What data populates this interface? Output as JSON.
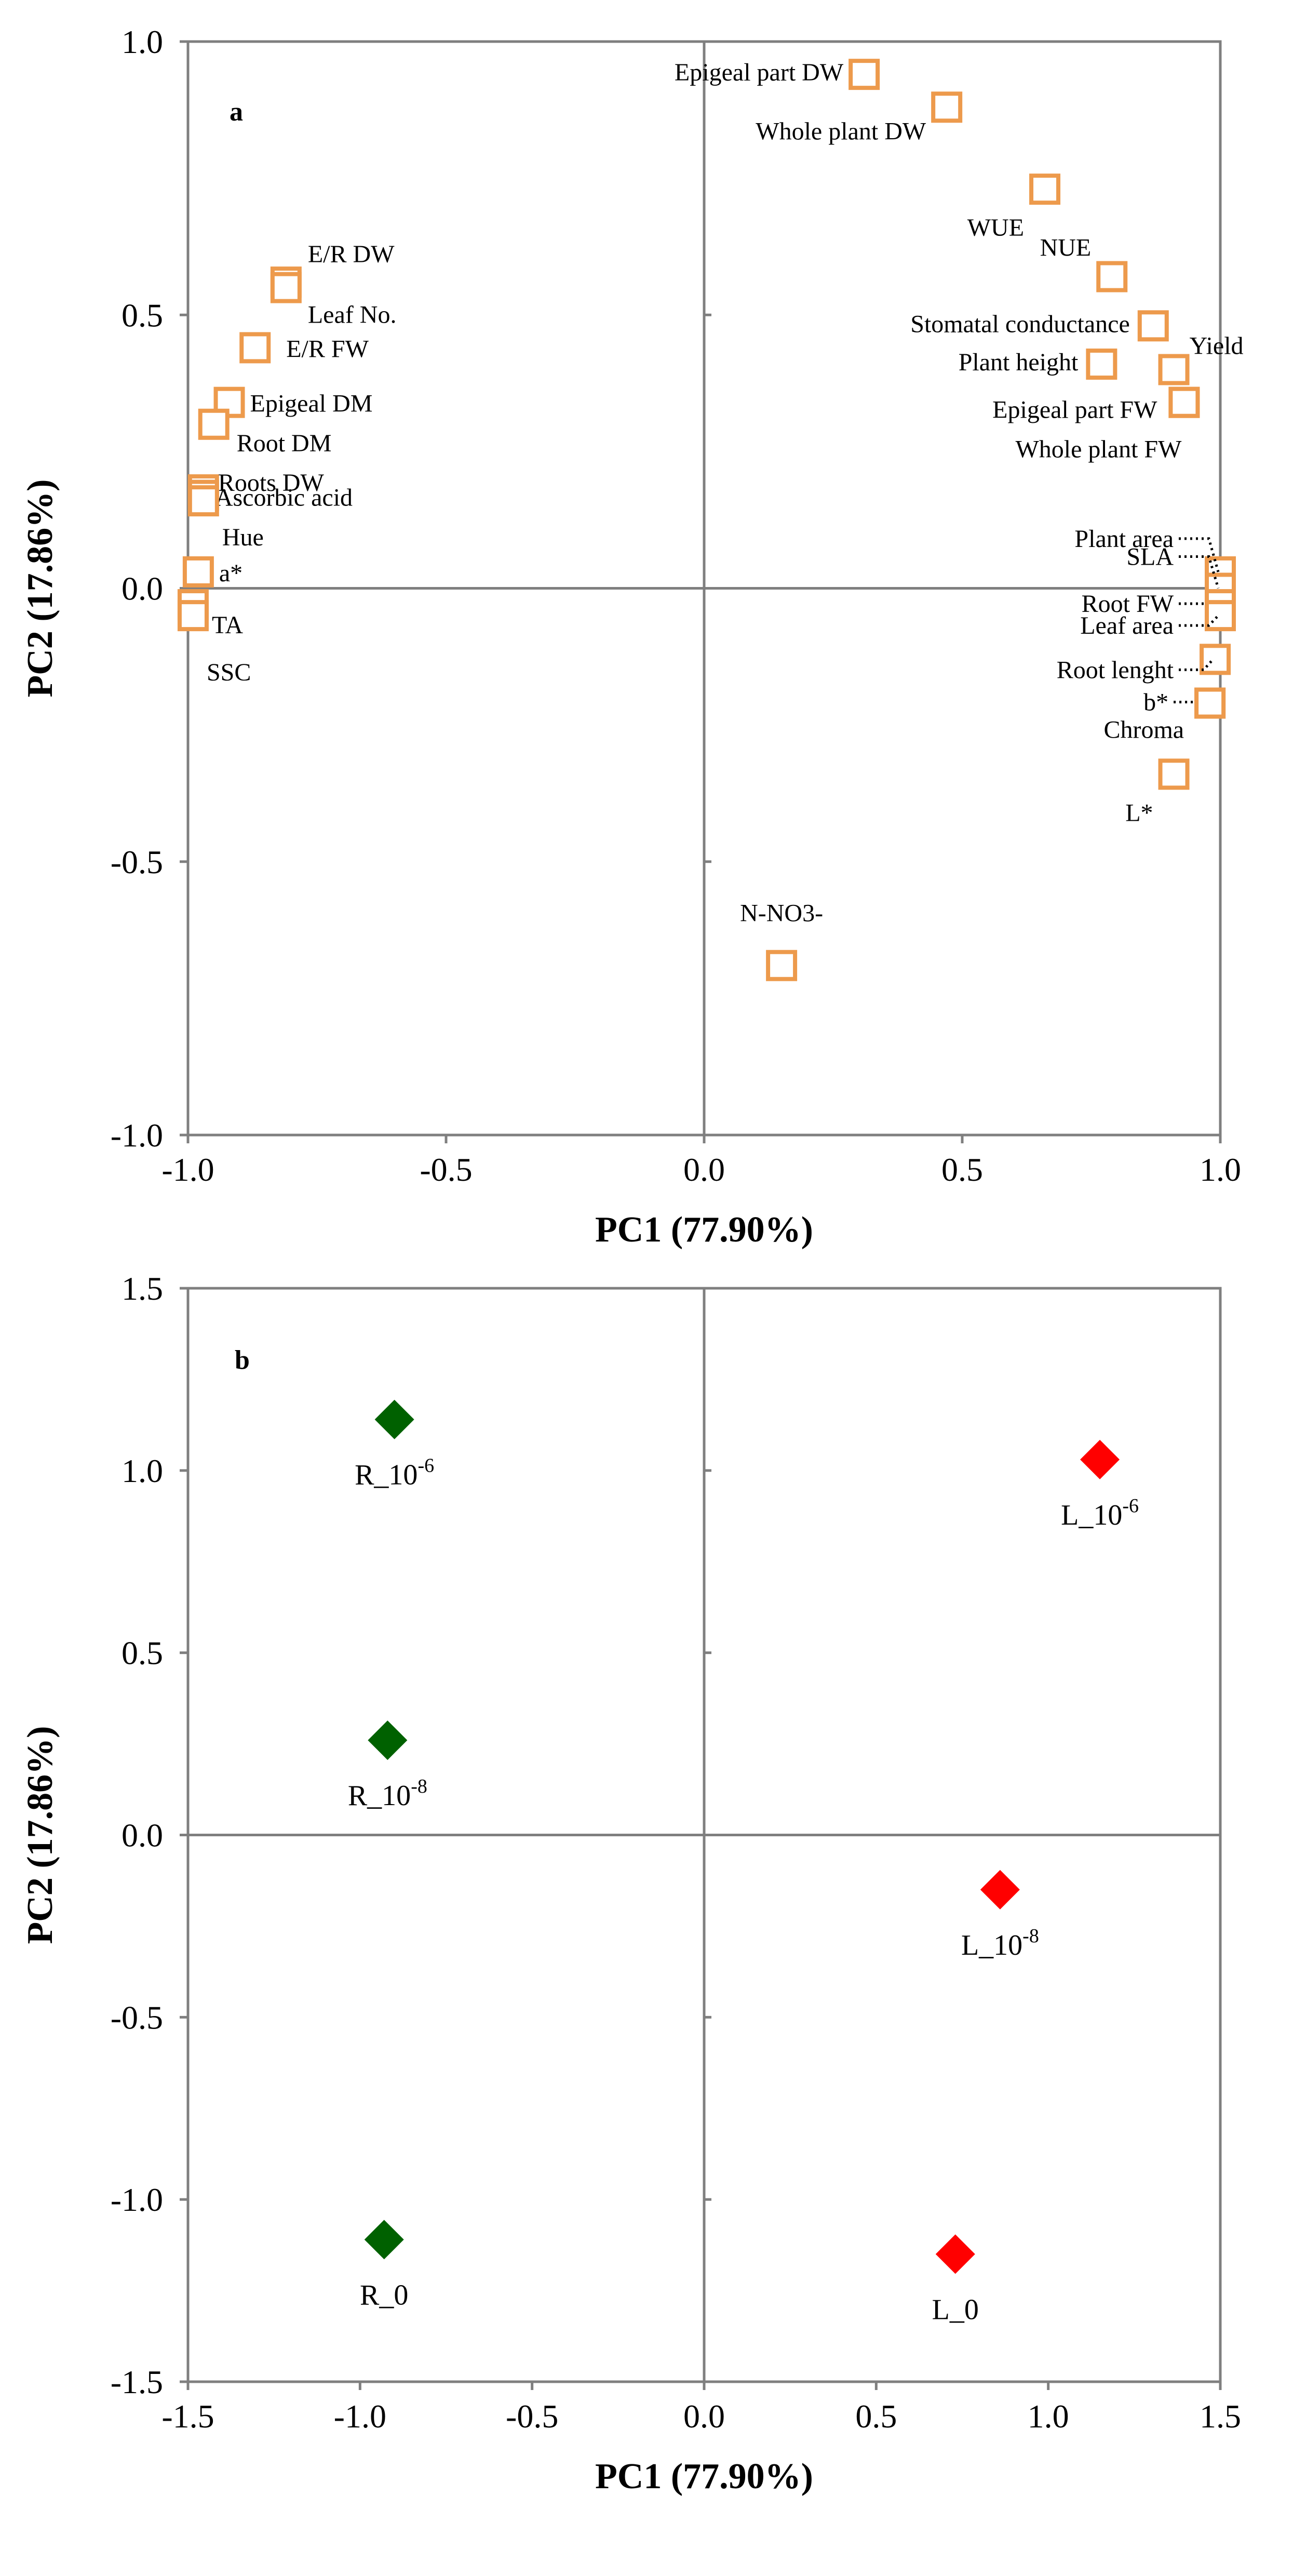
{
  "chart_data": [
    {
      "panel": "a",
      "type": "scatter",
      "xlabel": "PC1 (77.90%)",
      "ylabel": "PC2 (17.86%)",
      "xlim": [
        -1.0,
        1.0
      ],
      "ylim": [
        -1.0,
        1.0
      ],
      "xticks": [
        "-1.0",
        "-0.5",
        "0.0",
        "0.5",
        "1.0"
      ],
      "yticks": [
        "1.0",
        "0.5",
        "0.0",
        "-0.5",
        "-1.0"
      ],
      "xtick_values": [
        -1.0,
        -0.5,
        0.0,
        0.5,
        1.0
      ],
      "ytick_values": [
        1.0,
        0.5,
        0.0,
        -0.5,
        -1.0
      ],
      "marker_color": "#ED9A4C",
      "points": [
        {
          "name": "Epigeal part DW",
          "x": 0.31,
          "y": 0.94
        },
        {
          "name": "Whole plant DW",
          "x": 0.47,
          "y": 0.88
        },
        {
          "name": "WUE",
          "x": 0.66,
          "y": 0.73
        },
        {
          "name": "NUE",
          "x": 0.79,
          "y": 0.57
        },
        {
          "name": "Stomatal conductance",
          "x": 0.87,
          "y": 0.48
        },
        {
          "name": "Plant height",
          "x": 0.77,
          "y": 0.41
        },
        {
          "name": "Yield",
          "x": 0.91,
          "y": 0.4
        },
        {
          "name": "Epigeal part FW",
          "x": 0.93,
          "y": 0.34
        },
        {
          "name": "Whole plant FW",
          "x": 0.93,
          "y": 0.34
        },
        {
          "name": "Plant area",
          "x": 1.0,
          "y": 0.03
        },
        {
          "name": "SLA",
          "x": 1.0,
          "y": 0.0
        },
        {
          "name": "Root FW",
          "x": 1.0,
          "y": -0.03
        },
        {
          "name": "Leaf area",
          "x": 1.0,
          "y": -0.05
        },
        {
          "name": "Root lenght",
          "x": 0.99,
          "y": -0.13
        },
        {
          "name": "b*",
          "x": 0.98,
          "y": -0.21
        },
        {
          "name": "Chroma",
          "x": 0.98,
          "y": -0.21
        },
        {
          "name": "L*",
          "x": 0.91,
          "y": -0.34
        },
        {
          "name": "N-NO3-",
          "x": 0.15,
          "y": -0.69
        },
        {
          "name": "E/R DW",
          "x": -0.81,
          "y": 0.56
        },
        {
          "name": "Leaf No.",
          "x": -0.81,
          "y": 0.55
        },
        {
          "name": "E/R FW",
          "x": -0.87,
          "y": 0.44
        },
        {
          "name": "Epigeal DM",
          "x": -0.92,
          "y": 0.34
        },
        {
          "name": "Root DM",
          "x": -0.95,
          "y": 0.3
        },
        {
          "name": "Roots DW",
          "x": -0.97,
          "y": 0.18
        },
        {
          "name": "Ascorbic acid",
          "x": -0.97,
          "y": 0.17
        },
        {
          "name": "Hue",
          "x": -0.97,
          "y": 0.16
        },
        {
          "name": "a*",
          "x": -0.98,
          "y": 0.03
        },
        {
          "name": "TA",
          "x": -0.99,
          "y": -0.03
        },
        {
          "name": "SSC",
          "x": -0.99,
          "y": -0.05
        }
      ]
    },
    {
      "panel": "b",
      "type": "scatter",
      "xlabel": "PC1 (77.90%)",
      "ylabel": "PC2 (17.86%)",
      "xlim": [
        -1.5,
        1.5
      ],
      "ylim": [
        -1.5,
        1.5
      ],
      "xticks": [
        "-1.5",
        "-1.0",
        "-0.5",
        "0.0",
        "0.5",
        "1.0",
        "1.5"
      ],
      "yticks": [
        "1.5",
        "1.0",
        "0.5",
        "0.0",
        "-0.5",
        "-1.0",
        "-1.5"
      ],
      "xtick_values": [
        -1.5,
        -1.0,
        -0.5,
        0.0,
        0.5,
        1.0,
        1.5
      ],
      "ytick_values": [
        1.5,
        1.0,
        0.5,
        0.0,
        -0.5,
        -1.0,
        -1.5
      ],
      "series": [
        {
          "name": "R",
          "color": "#006100",
          "points": [
            {
              "base": "R_10",
              "exp": "-6",
              "x": -0.9,
              "y": 1.14
            },
            {
              "base": "R_10",
              "exp": "-8",
              "x": -0.92,
              "y": 0.26
            },
            {
              "base": "R_0",
              "exp": "",
              "x": -0.93,
              "y": -1.11
            }
          ]
        },
        {
          "name": "L",
          "color": "#ff0000",
          "points": [
            {
              "base": "L_10",
              "exp": "-6",
              "x": 1.15,
              "y": 1.03
            },
            {
              "base": "L_10",
              "exp": "-8",
              "x": 0.86,
              "y": -0.15
            },
            {
              "base": "L_0",
              "exp": "",
              "x": 0.73,
              "y": -1.15
            }
          ]
        }
      ]
    }
  ]
}
